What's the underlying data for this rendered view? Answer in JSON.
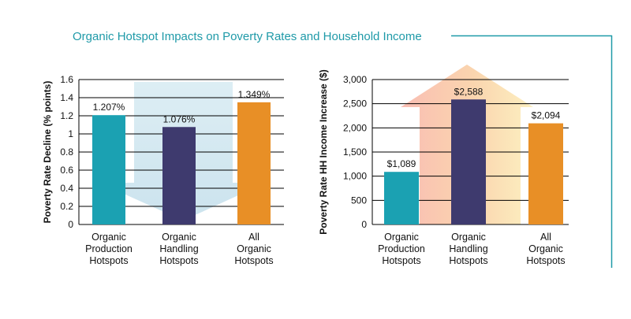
{
  "title": "Organic Hotspot Impacts on Poverty Rates and Household Income",
  "colors": {
    "title": "#1f9aa8",
    "frame": "#1f9aa8",
    "production": "#1ba1b2",
    "handling": "#3e3a6e",
    "all": "#e88f26",
    "grid": "#000000",
    "text": "#111111",
    "down_arrow": "#cfe6ef",
    "up_arrow": "#f6b79a"
  },
  "chart_data": [
    {
      "type": "bar",
      "categories": [
        [
          "Organic",
          "Production",
          "Hotspots"
        ],
        [
          "Organic",
          "Handling",
          "Hotspots"
        ],
        [
          "All",
          "Organic",
          "Hotspots"
        ]
      ],
      "values": [
        1.207,
        1.076,
        1.349
      ],
      "data_labels": [
        "1.207%",
        "1.076%",
        "1.349%"
      ],
      "bar_colors": [
        "production",
        "handling",
        "all"
      ],
      "ylabel": "Poverty Rate Decline (% points)",
      "ylim": [
        0,
        1.6
      ],
      "yticks": [
        0,
        0.2,
        0.4,
        0.6,
        0.8,
        1,
        1.2,
        1.4,
        1.6
      ],
      "ytick_labels": [
        "0",
        "0.2",
        "0.4",
        "0.6",
        "0.8",
        "1",
        "1.2",
        "1.4",
        "1.6"
      ],
      "grid": true,
      "background_arrow": "down"
    },
    {
      "type": "bar",
      "categories": [
        [
          "Organic",
          "Production",
          "Hotspots"
        ],
        [
          "Organic",
          "Handling",
          "Hotspots"
        ],
        [
          "All",
          "Organic",
          "Hotspots"
        ]
      ],
      "values": [
        1089,
        2588,
        2094
      ],
      "data_labels": [
        "$1,089",
        "$2,588",
        "$2,094"
      ],
      "bar_colors": [
        "production",
        "handling",
        "all"
      ],
      "ylabel": "Poverty Rate HH Income Increase ($)",
      "ylim": [
        0,
        3000
      ],
      "yticks": [
        0,
        500,
        1000,
        1500,
        2000,
        2500,
        3000
      ],
      "ytick_labels": [
        "0",
        "500",
        "1,000",
        "1,500",
        "2,000",
        "2,500",
        "3,000"
      ],
      "grid": true,
      "background_arrow": "up"
    }
  ]
}
